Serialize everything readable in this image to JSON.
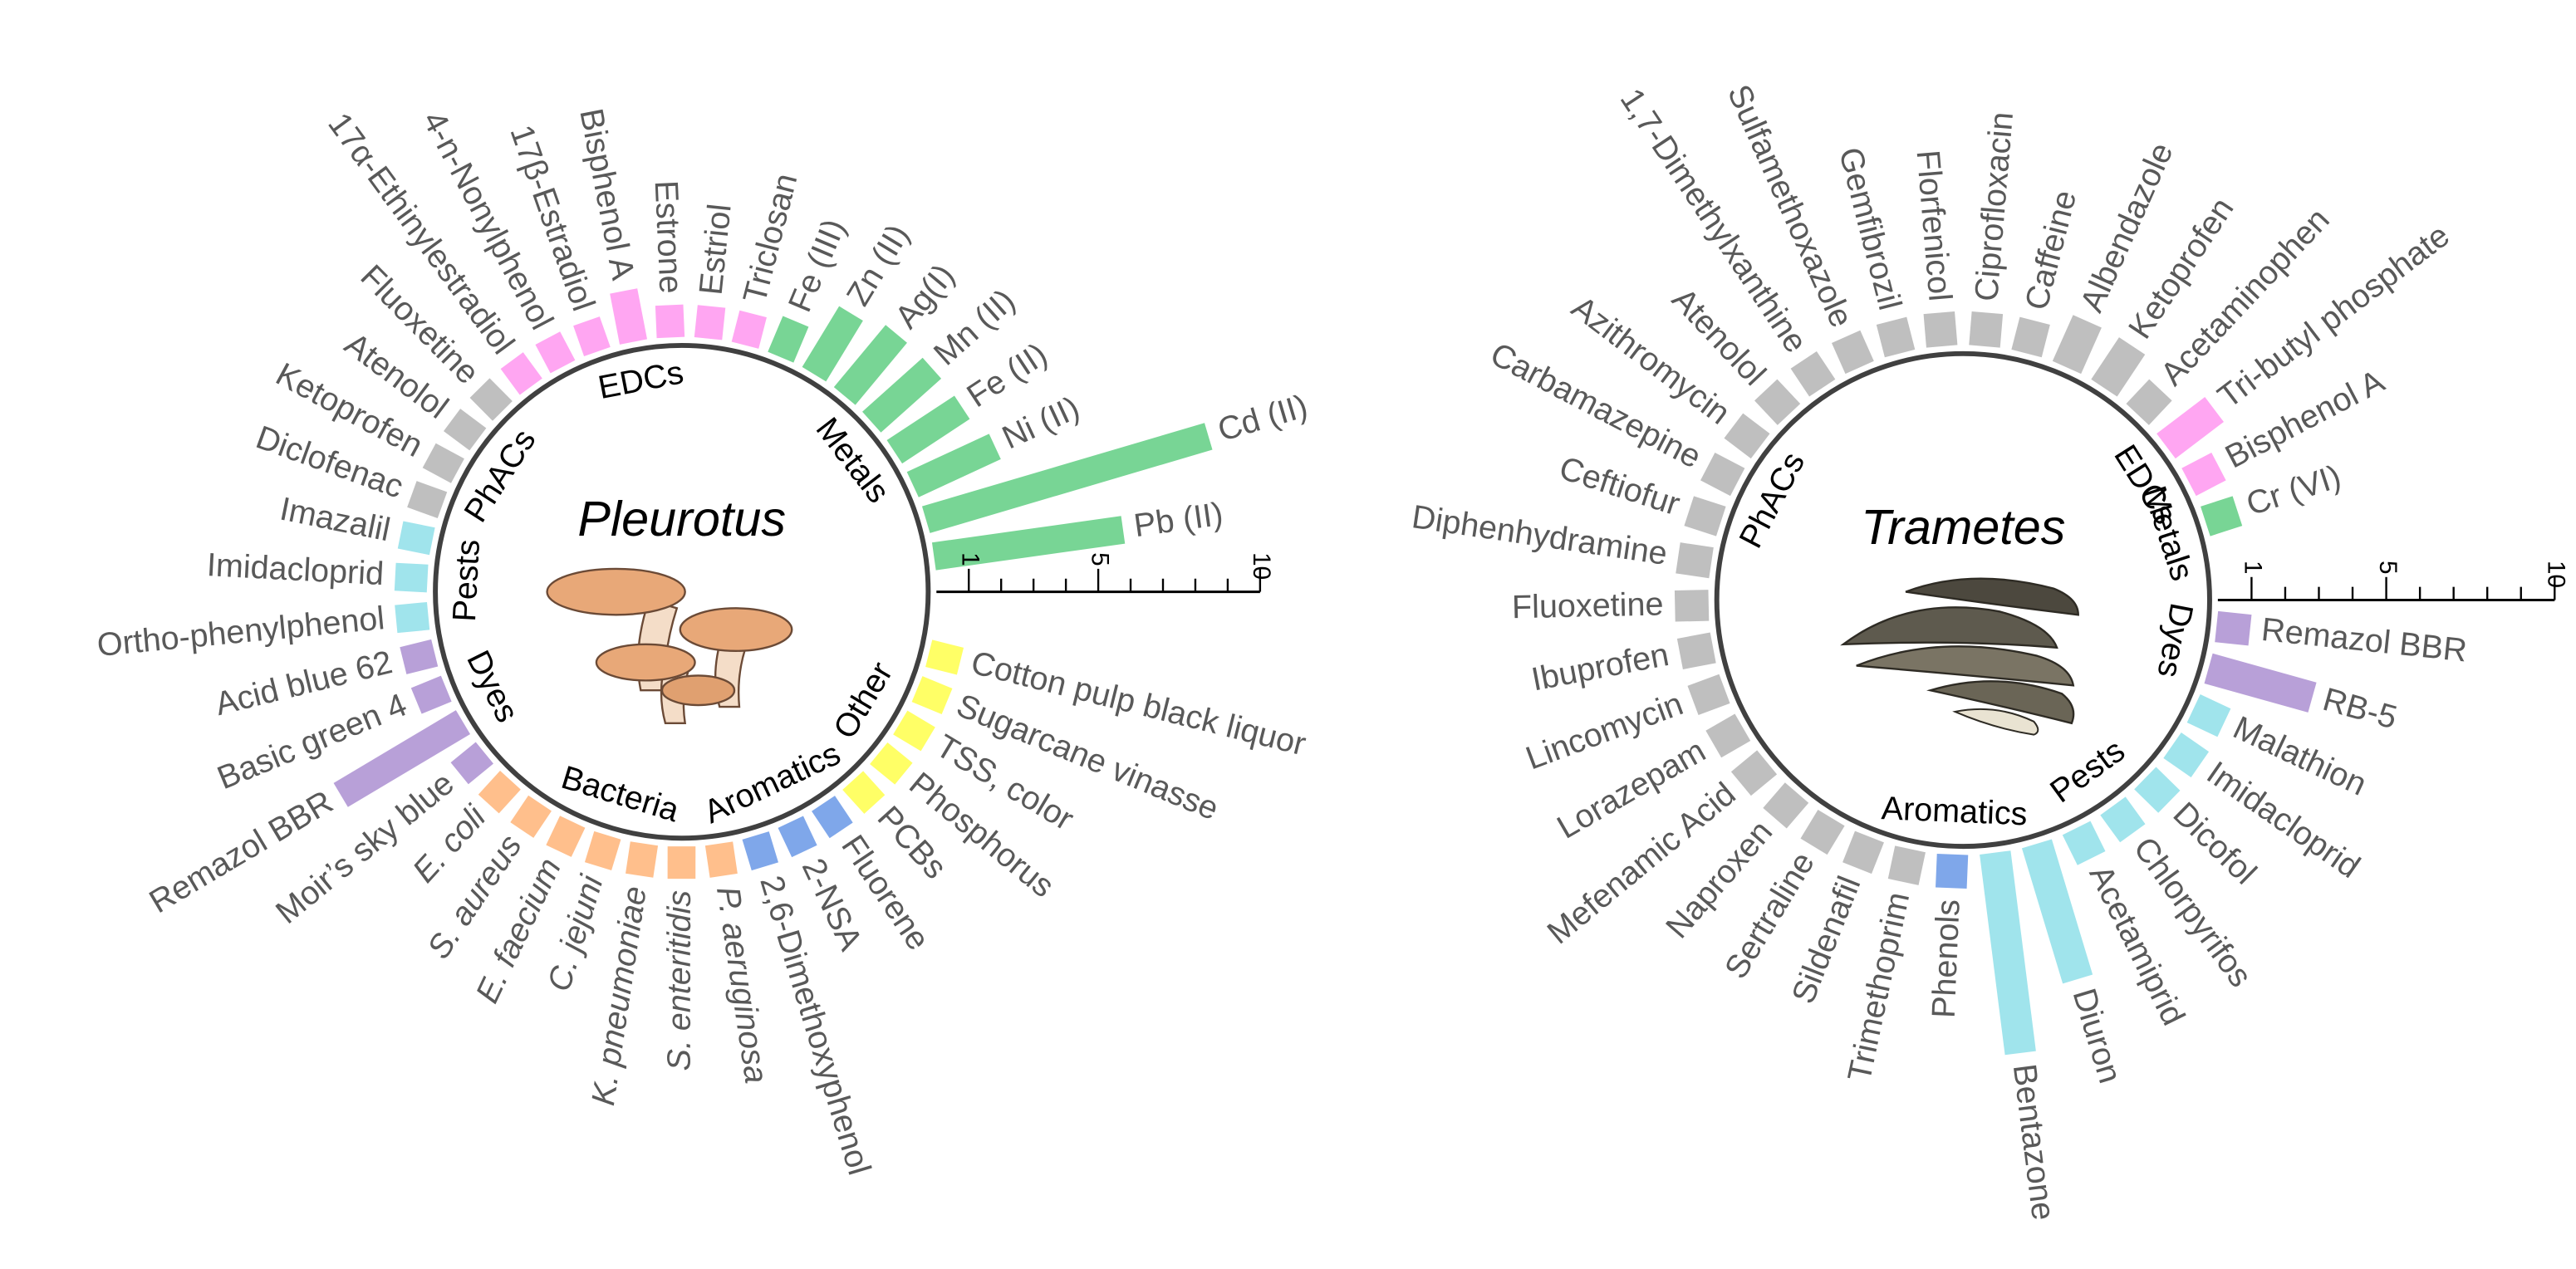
{
  "chart_data": [
    {
      "type": "radial_bar",
      "title": "Pleurotus",
      "ylim": [
        0,
        10
      ],
      "yticks": [
        1,
        5,
        10
      ],
      "minor_yticks": [
        2,
        3,
        4,
        6,
        7,
        8,
        9
      ],
      "series": [
        {
          "name": "Other",
          "color": "#ffff66",
          "categories": [
            "Cotton pulp black liquor",
            "Sugarcane vinasse",
            "TSS, color",
            "Phosphorus",
            "PCBs"
          ],
          "values": [
            1,
            1,
            1,
            1,
            1
          ]
        },
        {
          "name": "Aromatics",
          "color": "#7fa7ea",
          "categories": [
            "Fluorene",
            "2-NSA",
            "2,6-Dimethoxyphenol"
          ],
          "values": [
            1,
            1,
            1
          ]
        },
        {
          "name": "Bacteria",
          "color": "#ffbf8c",
          "italic": true,
          "categories": [
            "P. aeruginosa",
            "S. enteritidis",
            "K. pneumoniae",
            "C. jejuni",
            "E. faecium",
            "S. aureus",
            "E. coli"
          ],
          "values": [
            1,
            1,
            1,
            1,
            1,
            1,
            1
          ]
        },
        {
          "name": "Dyes",
          "color": "#b8a0d8",
          "categories": [
            "Moir’s sky blue",
            "Remazol BBR",
            "Basic green 4",
            "Acid blue 62"
          ],
          "values": [
            1,
            4.4,
            1,
            1
          ]
        },
        {
          "name": "Pests",
          "color": "#a0e4ec",
          "categories": [
            "Ortho-phenylphenol",
            "Imidacloprid",
            "Imazalil"
          ],
          "values": [
            1,
            1,
            1
          ]
        },
        {
          "name": "PhACs",
          "color": "#bfbfbf",
          "categories": [
            "Diclofenac",
            "Ketoprofen",
            "Atenolol",
            "Fluoxetine"
          ],
          "values": [
            1,
            1,
            1,
            1
          ]
        },
        {
          "name": "EDCs",
          "color": "#ffa6f2",
          "categories": [
            "17α-Ethinylestradiol",
            "4-n-Nonylphenol",
            "17β-Estradiol",
            "Bisphenol A",
            "Estrone",
            "Estriol",
            "Triclosan"
          ],
          "values": [
            1,
            1,
            1,
            1.6,
            1,
            1,
            1
          ]
        },
        {
          "name": "Metals",
          "color": "#78d595",
          "categories": [
            "Fe (III)",
            "Zn (II)",
            "Ag(I)",
            "Mn (II)",
            "Fe (II)",
            "Ni (II)",
            "Cd (II)",
            "Pb (II)"
          ],
          "values": [
            1.2,
            2.2,
            2.5,
            2.5,
            2.5,
            2.8,
            9.1,
            5.9
          ]
        }
      ]
    },
    {
      "type": "radial_bar",
      "title": "Trametes",
      "ylim": [
        0,
        10
      ],
      "yticks": [
        1,
        5,
        10
      ],
      "minor_yticks": [
        2,
        3,
        4,
        6,
        7,
        8,
        9
      ],
      "series": [
        {
          "name": "Dyes",
          "color": "#b8a0d8",
          "categories": [
            "Remazol BBR",
            "RB-5"
          ],
          "values": [
            1,
            3.2
          ]
        },
        {
          "name": "Pests",
          "color": "#a0e4ec",
          "categories": [
            "Malathion",
            "Imidacloprid",
            "Dicofol",
            "Chlorpyrifos",
            "Acetamiprid",
            "Diuron",
            "Bentazone"
          ],
          "values": [
            1,
            1,
            1,
            1,
            1,
            4.2,
            6
          ]
        },
        {
          "name": "Aromatics",
          "color": "#7fa7ea",
          "categories": [
            "Phenols"
          ],
          "values": [
            1
          ]
        },
        {
          "name": "PhACs",
          "color": "#bfbfbf",
          "categories": [
            "Trimethoprim",
            "Sildenafil",
            "Sertraline",
            "Naproxen",
            "Mefenamic Acid",
            "Lorazepam",
            "Lincomycin",
            "Ibuprofen",
            "Fluoxetine",
            "Diphenhydramine",
            "Ceftiofur",
            "Carbamazepine",
            "Azithromycin",
            "Atenolol",
            "1,7-Dimethylxanthine",
            "Sulfamethoxazole",
            "Gemfibrozil",
            "Florfenicol",
            "Ciprofloxacin",
            "Caffeine",
            "Albendazole",
            "Ketoprofen",
            "Acetaminophen"
          ],
          "values": [
            1,
            1,
            1,
            1,
            1,
            1,
            1,
            1,
            1,
            1,
            1,
            1,
            1,
            1,
            1,
            1,
            1,
            1,
            1,
            1,
            1.5,
            1.5,
            1
          ]
        },
        {
          "name": "EDCs",
          "color": "#ffa6f2",
          "categories": [
            "Tri-butyl phosphate",
            "Bisphenol A"
          ],
          "values": [
            1.8,
            1
          ]
        },
        {
          "name": "Metals",
          "color": "#78d595",
          "categories": [
            "Cr (VI)"
          ],
          "values": [
            1
          ]
        }
      ]
    }
  ]
}
